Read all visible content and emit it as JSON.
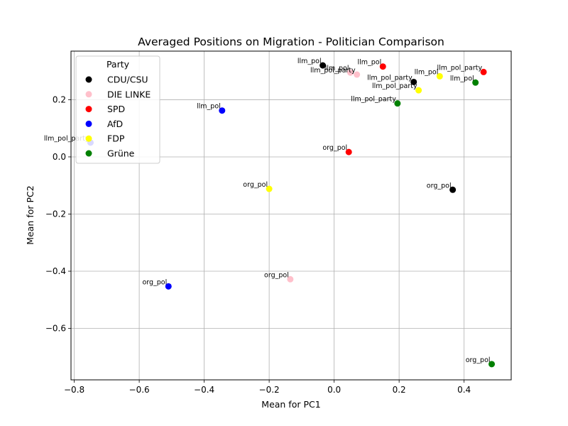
{
  "chart_data": {
    "type": "scatter",
    "title": "Averaged Positions on Migration - Politician Comparison",
    "xlabel": "Mean for PC1",
    "ylabel": "Mean for PC2",
    "xlim": [
      -0.81,
      0.545
    ],
    "ylim": [
      -0.78,
      0.37
    ],
    "xticks": [
      -0.8,
      -0.6,
      -0.4,
      -0.2,
      0.0,
      0.2,
      0.4
    ],
    "xtick_labels": [
      "−0.8",
      "−0.6",
      "−0.4",
      "−0.2",
      "0.0",
      "0.2",
      "0.4"
    ],
    "yticks": [
      -0.6,
      -0.4,
      -0.2,
      0.0,
      0.2
    ],
    "ytick_labels": [
      "−0.6",
      "−0.4",
      "−0.2",
      "0.0",
      "0.2"
    ],
    "grid": true,
    "legend": {
      "title": "Party",
      "placement": "upper-left",
      "entries": [
        {
          "name": "CDU/CSU",
          "color": "#000000"
        },
        {
          "name": "DIE LINKE",
          "color": "#ffc0cb"
        },
        {
          "name": "SPD",
          "color": "#ff0000"
        },
        {
          "name": "AfD",
          "color": "#0000ff"
        },
        {
          "name": "FDP",
          "color": "#ffff00"
        },
        {
          "name": "Grüne",
          "color": "#008000"
        }
      ]
    },
    "points": [
      {
        "party": "CDU/CSU",
        "label": "llm_pol",
        "x": -0.035,
        "y": 0.32
      },
      {
        "party": "CDU/CSU",
        "label": "llm_pol_party",
        "x": 0.245,
        "y": 0.262
      },
      {
        "party": "CDU/CSU",
        "label": "org_pol",
        "x": 0.365,
        "y": -0.115
      },
      {
        "party": "DIE LINKE",
        "label": "llm_pol",
        "x": 0.05,
        "y": 0.295
      },
      {
        "party": "DIE LINKE",
        "label": "llm_pol_party",
        "x": 0.07,
        "y": 0.288
      },
      {
        "party": "DIE LINKE",
        "label": "org_pol",
        "x": -0.135,
        "y": -0.428
      },
      {
        "party": "SPD",
        "label": "llm_pol",
        "x": 0.15,
        "y": 0.316
      },
      {
        "party": "SPD",
        "label": "llm_pol_party",
        "x": 0.46,
        "y": 0.297
      },
      {
        "party": "SPD",
        "label": "org_pol",
        "x": 0.045,
        "y": 0.017
      },
      {
        "party": "AfD",
        "label": "llm_pol",
        "x": -0.345,
        "y": 0.162
      },
      {
        "party": "AfD",
        "label": "llm_pol_party",
        "x": -0.75,
        "y": 0.05
      },
      {
        "party": "AfD",
        "label": "org_pol",
        "x": -0.51,
        "y": -0.453
      },
      {
        "party": "FDP",
        "label": "llm_pol",
        "x": 0.325,
        "y": 0.282
      },
      {
        "party": "FDP",
        "label": "llm_pol_party",
        "x": 0.26,
        "y": 0.233
      },
      {
        "party": "FDP",
        "label": "org_pol",
        "x": -0.2,
        "y": -0.112
      },
      {
        "party": "Grüne",
        "label": "llm_pol",
        "x": 0.435,
        "y": 0.26
      },
      {
        "party": "Grüne",
        "label": "llm_pol_party",
        "x": 0.195,
        "y": 0.187
      },
      {
        "party": "Grüne",
        "label": "org_pol",
        "x": 0.485,
        "y": -0.725
      }
    ]
  }
}
